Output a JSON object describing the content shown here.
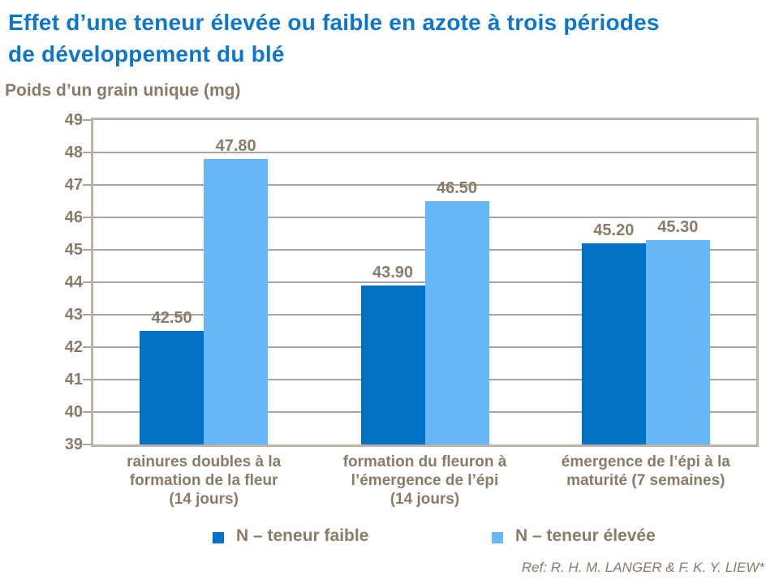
{
  "title": "Effet d’une teneur élevée ou faible en azote à trois périodes\nde développement du blé",
  "axis_title": "Poids d’un grain unique (mg)",
  "footer": {
    "reference": "Ref: R. H. M. LANGER & F. K. Y. LIEW*"
  },
  "colors": {
    "title_blue": "#0d76c8",
    "series_low_blue": "#0071c5",
    "series_high_blue": "#66b8f8",
    "text_brown": "#8a7a68",
    "gridline_gray": "#a6a6a6",
    "plot_border_taupe": "#beb5a8",
    "background": "#ffffff"
  },
  "chart_data": {
    "type": "bar",
    "title": "Effet d’une teneur élevée ou faible en azote à trois périodes de développement du blé",
    "xlabel": "",
    "ylabel": "Poids d’un grain unique (mg)",
    "ylim": [
      39,
      49
    ],
    "ytick_step": 1,
    "yticks": [
      39,
      40,
      41,
      42,
      43,
      44,
      45,
      46,
      47,
      48,
      49
    ],
    "grid": "horizontal",
    "legend_position": "bottom",
    "categories": [
      "rainures doubles à la formation de la fleur (14 jours)",
      "formation du fleuron à l’émergence de l’épi (14 jours)",
      "émergence de l’épi à la maturité (7 semaines)"
    ],
    "categories_display": [
      "rainures doubles à la\nformation de la fleur\n(14 jours)",
      "formation du fleuron à\nl’émergence de l’épi\n(14 jours)",
      "émergence de l’épi à la\nmaturité (7 semaines)"
    ],
    "series": [
      {
        "name": "N – teneur faible",
        "color": "#0071c5",
        "values": [
          42.5,
          43.9,
          45.2
        ],
        "labels": [
          "42.50",
          "43.90",
          "45.20"
        ]
      },
      {
        "name": "N – teneur élevée",
        "color": "#66b8f8",
        "values": [
          47.8,
          46.5,
          45.3
        ],
        "labels": [
          "47.80",
          "46.50",
          "45.30"
        ]
      }
    ]
  }
}
